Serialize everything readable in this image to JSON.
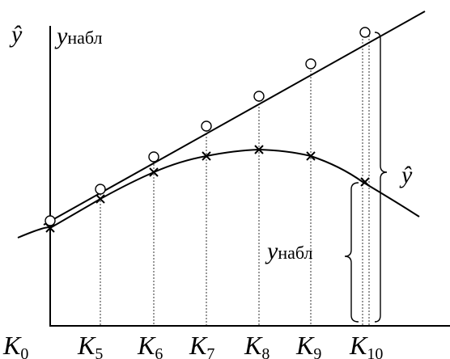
{
  "labels": {
    "y_hat": "ŷ",
    "y_obs": "y",
    "y_obs_sub": "набл",
    "k_letter": "K",
    "brace_y_hat": "ŷ",
    "brace_y_obs": "y",
    "brace_y_obs_sub": "набл"
  },
  "k_indices": [
    "0",
    "5",
    "6",
    "7",
    "8",
    "9",
    "10"
  ],
  "colors": {
    "ink": "#000000",
    "background": "#ffffff"
  }
}
